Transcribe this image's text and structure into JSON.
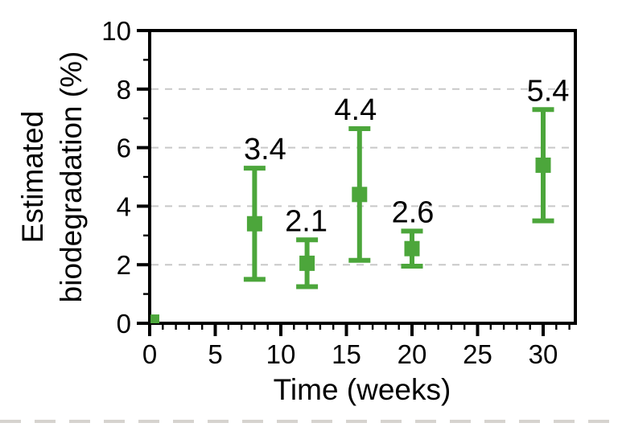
{
  "figure": {
    "background": "#ffffff",
    "description": "Scatter plot with error bars of estimated biodegradation percentage over time in weeks"
  },
  "colors": {
    "marker_green": "#4CA63B",
    "grid_gray": "#c8c8c8",
    "axis_black": "#000000",
    "bottom_artifact": "#c9c5bf"
  },
  "chart_data": {
    "type": "scatter",
    "title": "",
    "xlabel": "Time (weeks)",
    "ylabel_line1": "Estimated",
    "ylabel_line2": "biodegradation (%)",
    "xlim": [
      0,
      32.5
    ],
    "ylim": [
      0,
      10
    ],
    "x_major_ticks": [
      0,
      5,
      10,
      15,
      20,
      25,
      30
    ],
    "x_tick_labels": [
      "0",
      "5",
      "10",
      "15",
      "20",
      "25",
      "30"
    ],
    "x_minor_step": 1,
    "y_major_ticks": [
      0,
      2,
      4,
      6,
      8,
      10
    ],
    "y_tick_labels": [
      "0",
      "2",
      "4",
      "6",
      "8",
      "10"
    ],
    "y_minor_ticks": [
      1,
      3,
      5,
      7,
      9
    ],
    "grid": {
      "visible": true,
      "axis": "y",
      "values": [
        2,
        4,
        6,
        8
      ],
      "style": "dashed"
    },
    "legend": {
      "visible": false
    },
    "series": [
      {
        "name": "estimated biodegradation",
        "marker": "square",
        "color": "#4CA63B",
        "points": [
          {
            "x": 0.4,
            "y": 0.15,
            "err": 0,
            "label": "",
            "marker_px": 11,
            "label_dx": 0
          },
          {
            "x": 8,
            "y": 3.4,
            "err": 1.9,
            "label": "3.4",
            "marker_px": 19,
            "label_dx": 13
          },
          {
            "x": 12,
            "y": 2.05,
            "err": 0.8,
            "label": "2.1",
            "marker_px": 19,
            "label_dx": -1
          },
          {
            "x": 16,
            "y": 4.4,
            "err": 2.25,
            "label": "4.4",
            "marker_px": 19,
            "label_dx": -5
          },
          {
            "x": 20,
            "y": 2.55,
            "err": 0.6,
            "label": "2.6",
            "marker_px": 19,
            "label_dx": 1
          },
          {
            "x": 30,
            "y": 5.4,
            "err": 1.9,
            "label": "5.4",
            "marker_px": 19,
            "label_dx": 6
          }
        ]
      }
    ]
  }
}
